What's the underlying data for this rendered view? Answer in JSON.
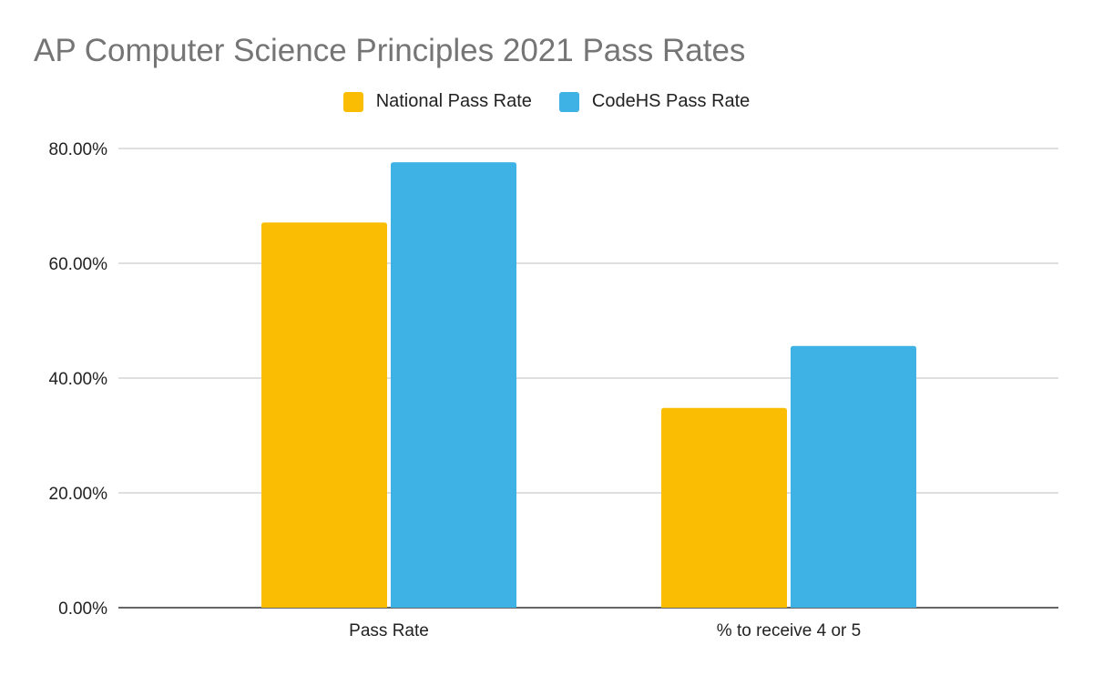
{
  "chart_data": {
    "type": "bar",
    "title": "AP Computer Science Principles 2021 Pass Rates",
    "categories": [
      "Pass Rate",
      "% to receive 4 or 5"
    ],
    "series": [
      {
        "name": "National Pass Rate",
        "values": [
          67.1,
          34.8
        ],
        "color": "#FABD03"
      },
      {
        "name": "CodeHS Pass Rate",
        "values": [
          77.6,
          45.6
        ],
        "color": "#3EB2E4"
      }
    ],
    "yticks": [
      "0.00%",
      "20.00%",
      "40.00%",
      "60.00%",
      "80.00%"
    ],
    "ylim": [
      0,
      80
    ],
    "xlabel": "",
    "ylabel": "",
    "grid": true,
    "legend": "top"
  }
}
